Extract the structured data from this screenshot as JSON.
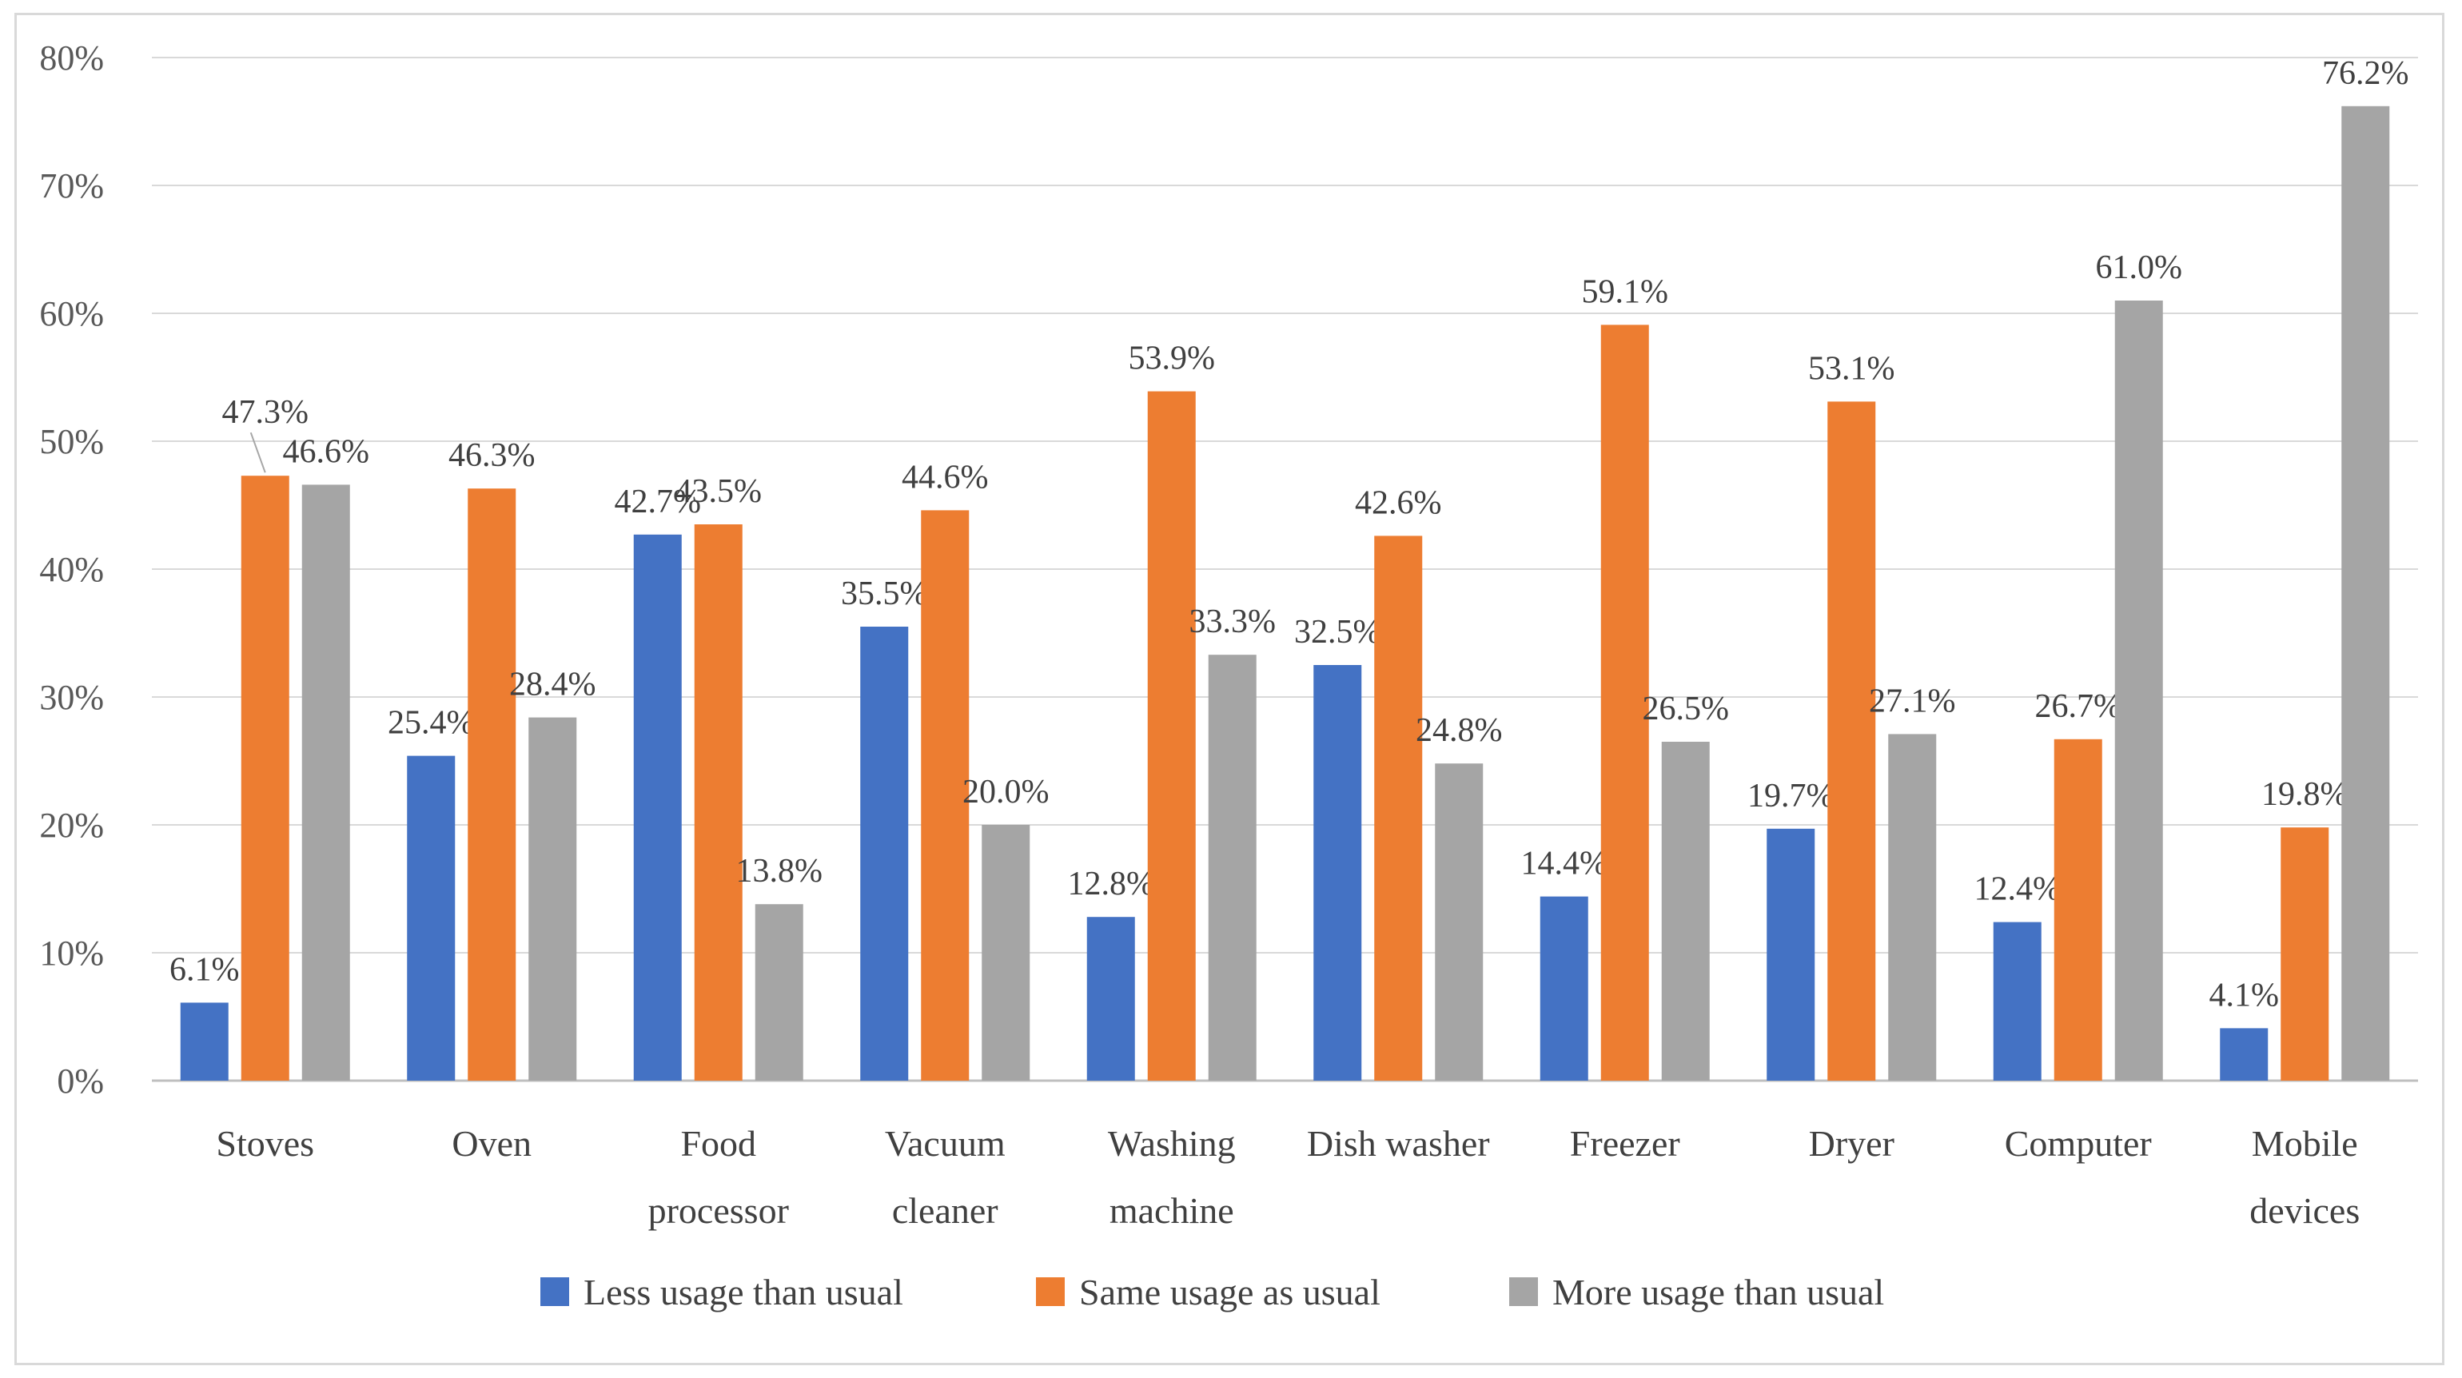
{
  "chart_data": {
    "type": "bar",
    "title": "",
    "xlabel": "",
    "ylabel": "",
    "ylim": [
      0,
      80
    ],
    "yticks": [
      "0%",
      "10%",
      "20%",
      "30%",
      "40%",
      "50%",
      "60%",
      "70%",
      "80%"
    ],
    "grid": true,
    "legend_position": "bottom",
    "categories": [
      [
        "Stoves"
      ],
      [
        "Oven"
      ],
      [
        "Food",
        "processor"
      ],
      [
        "Vacuum",
        "cleaner"
      ],
      [
        "Washing",
        "machine"
      ],
      [
        "Dish washer"
      ],
      [
        "Freezer"
      ],
      [
        "Dryer"
      ],
      [
        "Computer"
      ],
      [
        "Mobile",
        "devices"
      ]
    ],
    "series": [
      {
        "name": "Less usage than usual",
        "color": "#4472c4",
        "values": [
          6.1,
          25.4,
          42.7,
          35.5,
          12.8,
          32.5,
          14.4,
          19.7,
          12.4,
          4.1
        ],
        "labels": [
          "6.1%",
          "25.4%",
          "42.7%",
          "35.5%",
          "12.8%",
          "32.5%",
          "14.4%",
          "19.7%",
          "12.4%",
          "4.1%"
        ]
      },
      {
        "name": "Same usage as usual",
        "color": "#ed7d31",
        "values": [
          47.3,
          46.3,
          43.5,
          44.6,
          53.9,
          42.6,
          59.1,
          53.1,
          26.7,
          19.8
        ],
        "labels": [
          "47.3%",
          "46.3%",
          "43.5%",
          "44.6%",
          "53.9%",
          "42.6%",
          "59.1%",
          "53.1%",
          "26.7%",
          "19.8%"
        ]
      },
      {
        "name": "More usage than usual",
        "color": "#a5a5a5",
        "values": [
          46.6,
          28.4,
          13.8,
          20.0,
          33.3,
          24.8,
          26.5,
          27.1,
          61.0,
          76.2
        ],
        "labels": [
          "46.6%",
          "28.4%",
          "13.8%",
          "20.0%",
          "33.3%",
          "24.8%",
          "26.5%",
          "27.1%",
          "61.0%",
          "76.2%"
        ]
      }
    ]
  }
}
